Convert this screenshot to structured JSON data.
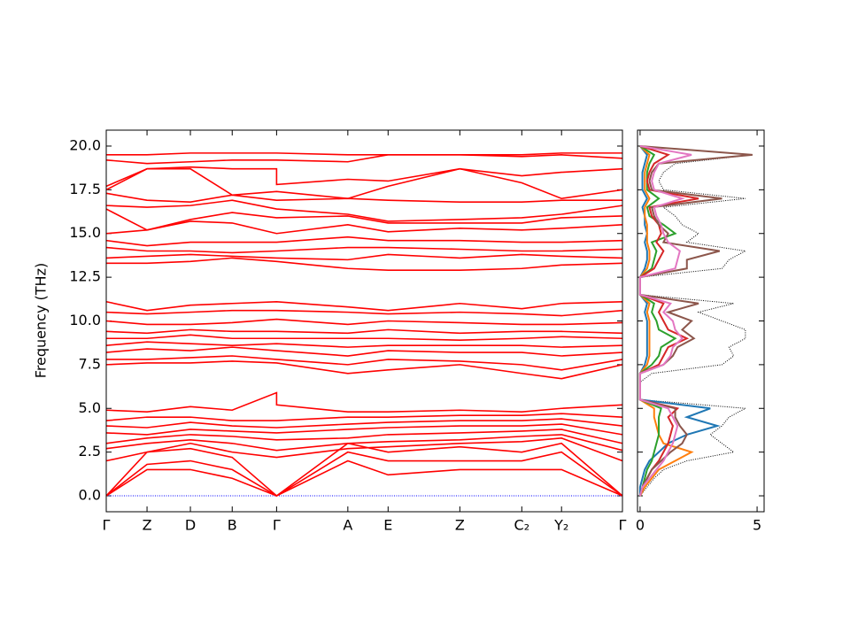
{
  "chart_data": [
    {
      "type": "bands",
      "y_label": "Frequency (THz)",
      "color": "#ff0000",
      "xlim": [
        0,
        1
      ],
      "ylim": [
        -0.91,
        20.91
      ],
      "xticks": [
        {
          "value": 0,
          "label": "Γ"
        },
        {
          "value": 0.079,
          "label": "Z"
        },
        {
          "value": 0.163,
          "label": "D"
        },
        {
          "value": 0.244,
          "label": "B"
        },
        {
          "value": 0.33,
          "label": "Γ"
        },
        {
          "value": 0.468,
          "label": "A"
        },
        {
          "value": 0.546,
          "label": "E"
        },
        {
          "value": 0.685,
          "label": "Z"
        },
        {
          "value": 0.805,
          "label": "C₂"
        },
        {
          "value": 0.882,
          "label": "Y₂"
        },
        {
          "value": 1,
          "label": "Γ"
        }
      ],
      "yticks": [
        {
          "value": 0,
          "label": "0.0"
        },
        2.5,
        {
          "value": 5,
          "label": "5.0"
        },
        7.5,
        {
          "value": 10,
          "label": "10.0"
        },
        12.5,
        {
          "value": 15,
          "label": "15.0"
        },
        17.5,
        {
          "value": 20,
          "label": "20.0"
        }
      ],
      "hline": {
        "value": 0,
        "color": "#0000ff"
      },
      "x": [
        0,
        0.079,
        0.163,
        0.244,
        0.33,
        0.33,
        0.468,
        0.546,
        0.685,
        0.805,
        0.882,
        1
      ],
      "series": [
        {
          "values": [
            0,
            1.5,
            1.5,
            1.0,
            0,
            0,
            2.0,
            1.2,
            1.5,
            1.5,
            1.5,
            0
          ]
        },
        {
          "values": [
            0,
            1.8,
            2.0,
            1.5,
            0,
            0,
            2.5,
            2.0,
            2.0,
            2.0,
            2.5,
            0
          ]
        },
        {
          "values": [
            0,
            2.5,
            2.7,
            2.2,
            0,
            0,
            3.0,
            2.5,
            2.8,
            2.5,
            3.0,
            0
          ]
        },
        {
          "values": [
            2.0,
            2.5,
            3.0,
            2.5,
            2.2,
            2.2,
            2.7,
            2.8,
            3.0,
            3.1,
            3.3,
            2.0
          ]
        },
        {
          "values": [
            2.7,
            3.0,
            3.2,
            3.0,
            2.6,
            2.6,
            3.0,
            3.1,
            3.2,
            3.4,
            3.5,
            2.6
          ]
        },
        {
          "values": [
            3.0,
            3.3,
            3.5,
            3.4,
            3.2,
            3.2,
            3.3,
            3.5,
            3.6,
            3.7,
            3.8,
            3.0
          ]
        },
        {
          "values": [
            3.6,
            3.5,
            3.8,
            3.7,
            3.6,
            3.6,
            3.8,
            3.9,
            4.0,
            4.0,
            4.1,
            3.5
          ]
        },
        {
          "values": [
            4.0,
            3.9,
            4.2,
            4.0,
            3.9,
            3.9,
            4.1,
            4.2,
            4.3,
            4.3,
            4.4,
            4.0
          ]
        },
        {
          "values": [
            4.3,
            4.5,
            4.5,
            4.3,
            4.3,
            4.3,
            4.5,
            4.5,
            4.6,
            4.6,
            4.7,
            4.5
          ]
        },
        {
          "values": [
            4.9,
            4.8,
            5.1,
            4.9,
            5.9,
            5.2,
            4.8,
            4.8,
            4.9,
            4.8,
            5.0,
            5.2
          ]
        },
        {
          "values": [
            7.5,
            7.6,
            7.6,
            7.7,
            7.6,
            7.6,
            7.0,
            7.2,
            7.5,
            7.0,
            6.7,
            7.5
          ]
        },
        {
          "values": [
            7.8,
            7.8,
            7.9,
            8.0,
            7.8,
            7.8,
            7.5,
            7.8,
            7.7,
            7.5,
            7.2,
            7.8
          ]
        },
        {
          "values": [
            8.2,
            8.4,
            8.3,
            8.5,
            8.3,
            8.3,
            8.0,
            8.3,
            8.2,
            8.2,
            8.0,
            8.2
          ]
        },
        {
          "values": [
            8.6,
            8.8,
            8.7,
            8.6,
            8.7,
            8.7,
            8.5,
            8.6,
            8.6,
            8.6,
            8.5,
            8.6
          ]
        },
        {
          "values": [
            9.0,
            9.0,
            9.2,
            9.0,
            9.0,
            9.0,
            9.0,
            9.0,
            8.9,
            9.0,
            9.1,
            9.0
          ]
        },
        {
          "values": [
            9.4,
            9.3,
            9.5,
            9.4,
            9.4,
            9.4,
            9.3,
            9.5,
            9.3,
            9.4,
            9.4,
            9.3
          ]
        },
        {
          "values": [
            10.0,
            9.8,
            9.8,
            9.9,
            10.1,
            10.1,
            9.8,
            10.0,
            9.9,
            9.8,
            9.8,
            9.9
          ]
        },
        {
          "values": [
            10.5,
            10.4,
            10.5,
            10.6,
            10.6,
            10.6,
            10.5,
            10.4,
            10.5,
            10.4,
            10.3,
            10.6
          ]
        },
        {
          "values": [
            11.1,
            10.6,
            10.9,
            11.0,
            11.1,
            11.1,
            10.8,
            10.6,
            11.0,
            10.7,
            11.0,
            11.1
          ]
        },
        {
          "values": [
            13.3,
            13.3,
            13.4,
            13.6,
            13.4,
            13.4,
            13.0,
            12.9,
            12.9,
            13.0,
            13.2,
            13.3
          ]
        },
        {
          "values": [
            13.6,
            13.7,
            13.8,
            13.7,
            13.6,
            13.6,
            13.5,
            13.8,
            13.6,
            13.8,
            13.7,
            13.6
          ]
        },
        {
          "values": [
            14.2,
            14.0,
            14.0,
            13.9,
            14.0,
            14.0,
            14.2,
            14.2,
            14.1,
            14.0,
            14.0,
            14.1
          ]
        },
        {
          "values": [
            14.6,
            14.3,
            14.5,
            14.5,
            14.5,
            14.5,
            14.8,
            14.6,
            14.6,
            14.5,
            14.5,
            14.6
          ]
        },
        {
          "values": [
            15.0,
            15.2,
            15.7,
            15.6,
            15.0,
            15.0,
            15.5,
            15.1,
            15.3,
            15.2,
            15.3,
            15.5
          ]
        },
        {
          "values": [
            16.4,
            15.2,
            15.8,
            16.2,
            15.9,
            15.9,
            16.0,
            15.6,
            15.6,
            15.6,
            15.9,
            16.0
          ]
        },
        {
          "values": [
            16.6,
            16.5,
            16.6,
            16.9,
            16.4,
            16.4,
            16.1,
            15.7,
            15.8,
            15.9,
            16.1,
            16.6
          ]
        },
        {
          "values": [
            17.3,
            16.9,
            16.8,
            17.2,
            16.9,
            16.9,
            17.0,
            16.9,
            16.8,
            16.8,
            16.9,
            16.9
          ]
        },
        {
          "values": [
            17.5,
            18.7,
            18.7,
            17.2,
            17.4,
            17.4,
            17.0,
            17.7,
            18.7,
            17.9,
            17.0,
            17.5
          ]
        },
        {
          "values": [
            17.7,
            18.7,
            18.8,
            18.7,
            18.7,
            17.8,
            18.1,
            18.0,
            18.7,
            18.3,
            18.5,
            18.7
          ]
        },
        {
          "values": [
            19.2,
            19.0,
            19.1,
            19.2,
            19.2,
            19.2,
            19.1,
            19.5,
            19.5,
            19.4,
            19.5,
            19.3
          ]
        },
        {
          "values": [
            19.5,
            19.5,
            19.6,
            19.6,
            19.6,
            19.6,
            19.5,
            19.5,
            19.5,
            19.5,
            19.6,
            19.6
          ]
        }
      ]
    },
    {
      "type": "dos",
      "xlim": [
        -0.11,
        5.3
      ],
      "xticks": [
        0,
        5
      ],
      "ylim": [
        -0.91,
        20.91
      ],
      "yticks": [
        0,
        2.5,
        5,
        7.5,
        10,
        12.5,
        15,
        17.5,
        20
      ],
      "y": [
        0,
        0.5,
        1,
        1.5,
        2,
        2.5,
        3,
        3.5,
        4,
        4.5,
        5,
        5.5,
        6,
        6.5,
        7,
        7.5,
        8,
        8.5,
        9,
        9.5,
        10,
        10.5,
        11,
        11.5,
        12,
        12.5,
        13,
        13.5,
        14,
        14.5,
        15,
        15.5,
        16,
        16.5,
        17,
        17.5,
        18,
        18.5,
        19,
        19.5,
        20
      ],
      "series": [
        {
          "color": "#000000",
          "linestyle": "dotted",
          "values": [
            0,
            0.3,
            0.6,
            1.0,
            2.0,
            4.0,
            3.5,
            3.0,
            3.5,
            3.8,
            4.5,
            0,
            0,
            0,
            0.5,
            3.5,
            4.0,
            3.8,
            4.5,
            4.5,
            3.5,
            2.5,
            4.0,
            0,
            0,
            0,
            3.5,
            3.8,
            4.5,
            2.0,
            2.5,
            1.8,
            1.5,
            1.0,
            4.5,
            1.0,
            0.8,
            1.0,
            1.5,
            4.8,
            0
          ]
        },
        {
          "color": "#1f77b4",
          "linestyle": "solid",
          "values": [
            0,
            0,
            0.1,
            0.2,
            0.4,
            0.8,
            1.2,
            2.0,
            3.3,
            2.0,
            3.0,
            0,
            0,
            0,
            0,
            0.2,
            0.3,
            0.3,
            0.3,
            0.3,
            0.3,
            0.2,
            0.3,
            0,
            0,
            0,
            0.2,
            0.3,
            0.3,
            0.2,
            0.3,
            0.2,
            0.2,
            0.1,
            0.3,
            0.1,
            0.1,
            0.1,
            0.2,
            0.3,
            0
          ]
        },
        {
          "color": "#ff7f0e",
          "linestyle": "solid",
          "values": [
            0,
            0.2,
            0.5,
            0.8,
            1.5,
            2.2,
            1.0,
            0.8,
            0.7,
            0.6,
            0.6,
            0,
            0,
            0,
            0,
            0.3,
            0.4,
            0.4,
            0.4,
            0.4,
            0.4,
            0.3,
            0.4,
            0,
            0,
            0,
            0.3,
            0.4,
            0.4,
            0.3,
            0.3,
            0.3,
            0.2,
            0.2,
            0.4,
            0.2,
            0.2,
            0.2,
            0.3,
            0.4,
            0
          ]
        },
        {
          "color": "#2ca02c",
          "linestyle": "solid",
          "values": [
            0,
            0.1,
            0.2,
            0.3,
            0.5,
            0.6,
            0.7,
            0.8,
            0.8,
            0.8,
            0.9,
            0,
            0,
            0,
            0,
            0.5,
            0.8,
            0.9,
            1.5,
            0.8,
            0.7,
            0.5,
            0.6,
            0,
            0,
            0,
            0.5,
            0.6,
            0.7,
            0.5,
            1.5,
            1.0,
            0.4,
            0.3,
            0.8,
            0.3,
            0.3,
            0.3,
            0.4,
            0.6,
            0
          ]
        },
        {
          "color": "#d62728",
          "linestyle": "solid",
          "values": [
            0,
            0.1,
            0.3,
            0.5,
            0.8,
            1.0,
            1.2,
            1.3,
            1.4,
            1.2,
            1.6,
            0,
            0,
            0,
            0,
            0.8,
            1.0,
            1.2,
            2.0,
            1.2,
            1.0,
            0.8,
            1.0,
            0,
            0,
            0,
            0.6,
            0.8,
            1.0,
            0.7,
            0.9,
            0.8,
            0.5,
            0.4,
            2.5,
            0.4,
            0.3,
            0.4,
            0.6,
            1.2,
            0
          ]
        },
        {
          "color": "#8c564b",
          "linestyle": "solid",
          "values": [
            0,
            0.1,
            0.3,
            0.5,
            0.9,
            1.3,
            1.8,
            2.0,
            1.7,
            1.5,
            1.5,
            0,
            0,
            0,
            0,
            1.0,
            1.4,
            1.6,
            2.3,
            1.8,
            2.2,
            1.2,
            2.5,
            0,
            0,
            0,
            2.0,
            2.0,
            3.4,
            1.0,
            1.2,
            0.8,
            0.6,
            0.5,
            3.5,
            0.5,
            0.4,
            0.5,
            0.8,
            4.8,
            0
          ]
        },
        {
          "color": "#e377c2",
          "linestyle": "solid",
          "values": [
            0,
            0.1,
            0.4,
            0.7,
            1.0,
            1.2,
            1.4,
            1.5,
            1.6,
            1.4,
            1.2,
            0,
            0,
            0,
            0,
            1.0,
            1.3,
            1.4,
            1.8,
            1.5,
            1.4,
            1.0,
            1.3,
            0,
            0,
            0,
            1.5,
            1.6,
            1.7,
            1.2,
            1.0,
            0.9,
            0.7,
            0.6,
            1.8,
            0.6,
            0.5,
            0.6,
            0.8,
            2.2,
            0
          ]
        }
      ]
    }
  ]
}
